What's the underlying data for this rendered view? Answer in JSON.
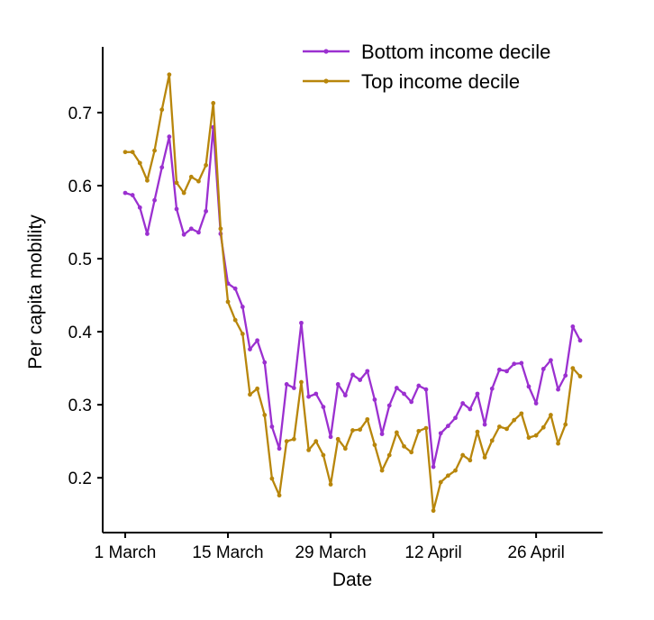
{
  "chart_data": {
    "type": "line",
    "title": "",
    "xlabel": "Date",
    "ylabel": "Per capita mobility",
    "x_start": "2020-03-01",
    "x_end": "2020-05-02",
    "x_ticks": [
      {
        "date": "2020-03-01",
        "label": "1 March"
      },
      {
        "date": "2020-03-15",
        "label": "15 March"
      },
      {
        "date": "2020-03-29",
        "label": "29 March"
      },
      {
        "date": "2020-04-12",
        "label": "12 April"
      },
      {
        "date": "2020-04-26",
        "label": "26 April"
      }
    ],
    "ylim": [
      0.125,
      0.79
    ],
    "y_ticks": [
      0.2,
      0.3,
      0.4,
      0.5,
      0.6,
      0.7
    ],
    "y_tick_labels": [
      "0.2",
      "0.3",
      "0.4",
      "0.5",
      "0.6",
      "0.7"
    ],
    "grid": false,
    "legend_position": "top-right",
    "series": [
      {
        "name": "Bottom income decile",
        "color": "#9b30d0",
        "values": [
          0.59,
          0.587,
          0.57,
          0.534,
          0.58,
          0.625,
          0.667,
          0.568,
          0.533,
          0.541,
          0.536,
          0.565,
          0.68,
          0.534,
          0.466,
          0.459,
          0.434,
          0.376,
          0.388,
          0.358,
          0.27,
          0.24,
          0.328,
          0.323,
          0.412,
          0.311,
          0.315,
          0.297,
          0.256,
          0.328,
          0.313,
          0.341,
          0.334,
          0.346,
          0.307,
          0.26,
          0.299,
          0.323,
          0.315,
          0.304,
          0.326,
          0.321,
          0.215,
          0.261,
          0.271,
          0.282,
          0.302,
          0.294,
          0.315,
          0.273,
          0.322,
          0.348,
          0.346,
          0.356,
          0.357,
          0.325,
          0.302,
          0.349,
          0.361,
          0.321,
          0.34,
          0.407,
          0.388
        ]
      },
      {
        "name": "Top income decile",
        "color": "#b8860b",
        "values": [
          0.646,
          0.646,
          0.631,
          0.607,
          0.648,
          0.704,
          0.752,
          0.604,
          0.59,
          0.612,
          0.606,
          0.628,
          0.713,
          0.541,
          0.441,
          0.416,
          0.397,
          0.314,
          0.322,
          0.286,
          0.199,
          0.176,
          0.25,
          0.253,
          0.331,
          0.238,
          0.25,
          0.231,
          0.191,
          0.253,
          0.24,
          0.265,
          0.266,
          0.28,
          0.245,
          0.21,
          0.231,
          0.262,
          0.243,
          0.235,
          0.264,
          0.268,
          0.155,
          0.194,
          0.203,
          0.21,
          0.231,
          0.224,
          0.263,
          0.228,
          0.251,
          0.27,
          0.267,
          0.279,
          0.288,
          0.255,
          0.258,
          0.269,
          0.286,
          0.247,
          0.273,
          0.35,
          0.339
        ]
      }
    ]
  }
}
